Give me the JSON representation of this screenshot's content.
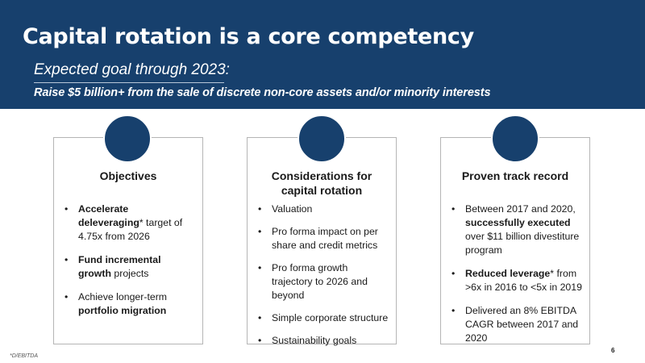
{
  "title": "Capital rotation is a core competency",
  "subtitle": "Expected goal through 2023:",
  "goal": "Raise $5 billion+ from the sale of discrete non-core assets and/or minority interests",
  "colors": {
    "banner": "#17406d",
    "circle": "#17406d"
  },
  "cards": [
    {
      "heading": "Objectives",
      "bullets": [
        {
          "bold": "Accelerate deleveraging",
          "text": "* target of 4.75x from 2026"
        },
        {
          "bold": "Fund incremental growth",
          "text": " projects"
        },
        {
          "pre": "Achieve longer-term ",
          "bold": "portfolio migration"
        }
      ]
    },
    {
      "heading_line1": "Considerations for",
      "heading_line2": "capital rotation",
      "bullets": [
        "Valuation",
        "Pro forma impact on per share and credit metrics",
        "Pro forma growth trajectory to 2026 and beyond",
        "Simple corporate structure",
        "Sustainability goals"
      ]
    },
    {
      "heading": "Proven track record",
      "bullets": [
        {
          "pre": "Between 2017 and 2020, ",
          "bold": "successfully executed",
          "text": " over $11 billion divestiture program"
        },
        {
          "bold": "Reduced leverage",
          "text": "* from >6x in 2016 to <5x in 2019"
        },
        {
          "text": "Delivered an 8% EBITDA CAGR between 2017 and 2020"
        }
      ]
    }
  ],
  "footnote": "*D/EBITDA",
  "page_number": "6"
}
